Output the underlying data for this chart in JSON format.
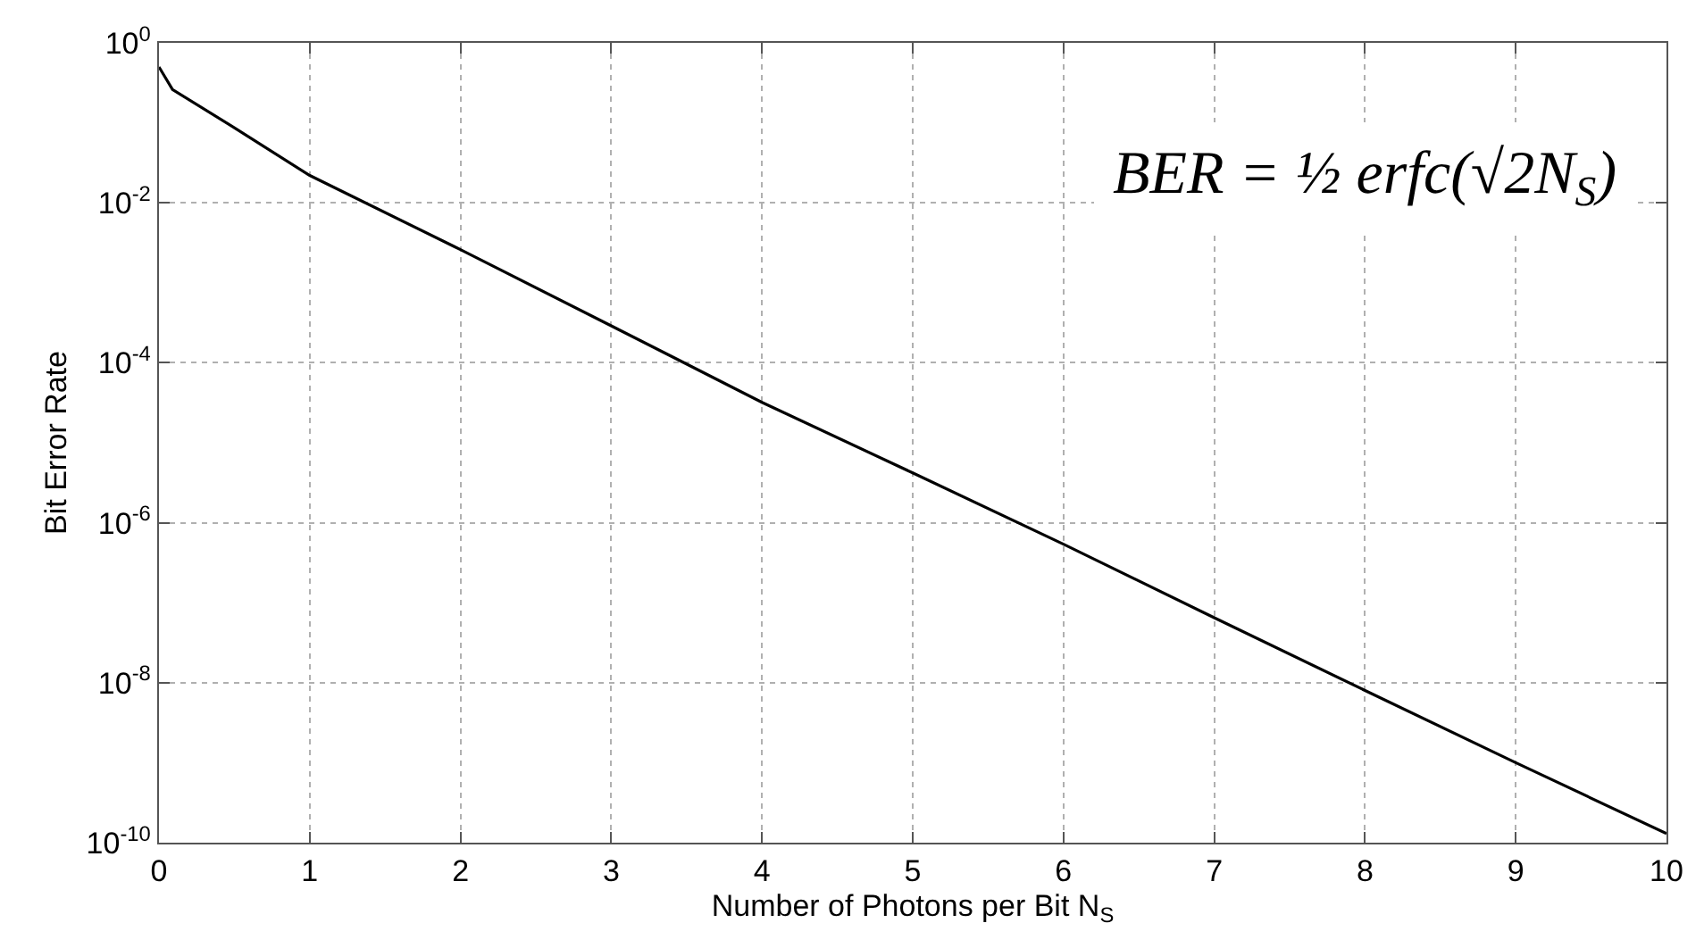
{
  "chart_data": {
    "type": "line",
    "xlabel": "Number of Photons per Bit N$_{S}$",
    "ylabel": "Bit Error Rate",
    "x": [
      0,
      0.09,
      0.5,
      1,
      2,
      3,
      4,
      5,
      6,
      7,
      8,
      9,
      10
    ],
    "series": [
      {
        "color": "#000000",
        "values": [
          0.5,
          0.26,
          0.087,
          0.022,
          0.0026,
          0.00029,
          3.2e-05,
          4.2e-06,
          5.4e-07,
          6.5e-08,
          8e-09,
          1e-09,
          1.3e-10
        ]
      }
    ],
    "log": true,
    "xlim": [
      0,
      10
    ],
    "xticks": [
      0,
      1,
      2,
      3,
      4,
      5,
      6,
      7,
      8,
      9,
      10
    ],
    "ylim": [
      1e-10,
      1
    ],
    "yticks": [
      {
        "value": 1e-10,
        "label": "10$^{-10}$"
      },
      {
        "value": 1e-08,
        "label": "10$^{-8}$"
      },
      {
        "value": 1e-06,
        "label": "10$^{-6}$"
      },
      {
        "value": 0.0001,
        "label": "10$^{-4}$"
      },
      {
        "value": 0.01,
        "label": "10$^{-2}$"
      },
      {
        "value": 1,
        "label": "10$^{0}$"
      }
    ],
    "grid": true,
    "marker": "none",
    "line_style": "solid",
    "annotations": [
      "BER = ½ erfc(√2N$_{S}$)"
    ]
  }
}
